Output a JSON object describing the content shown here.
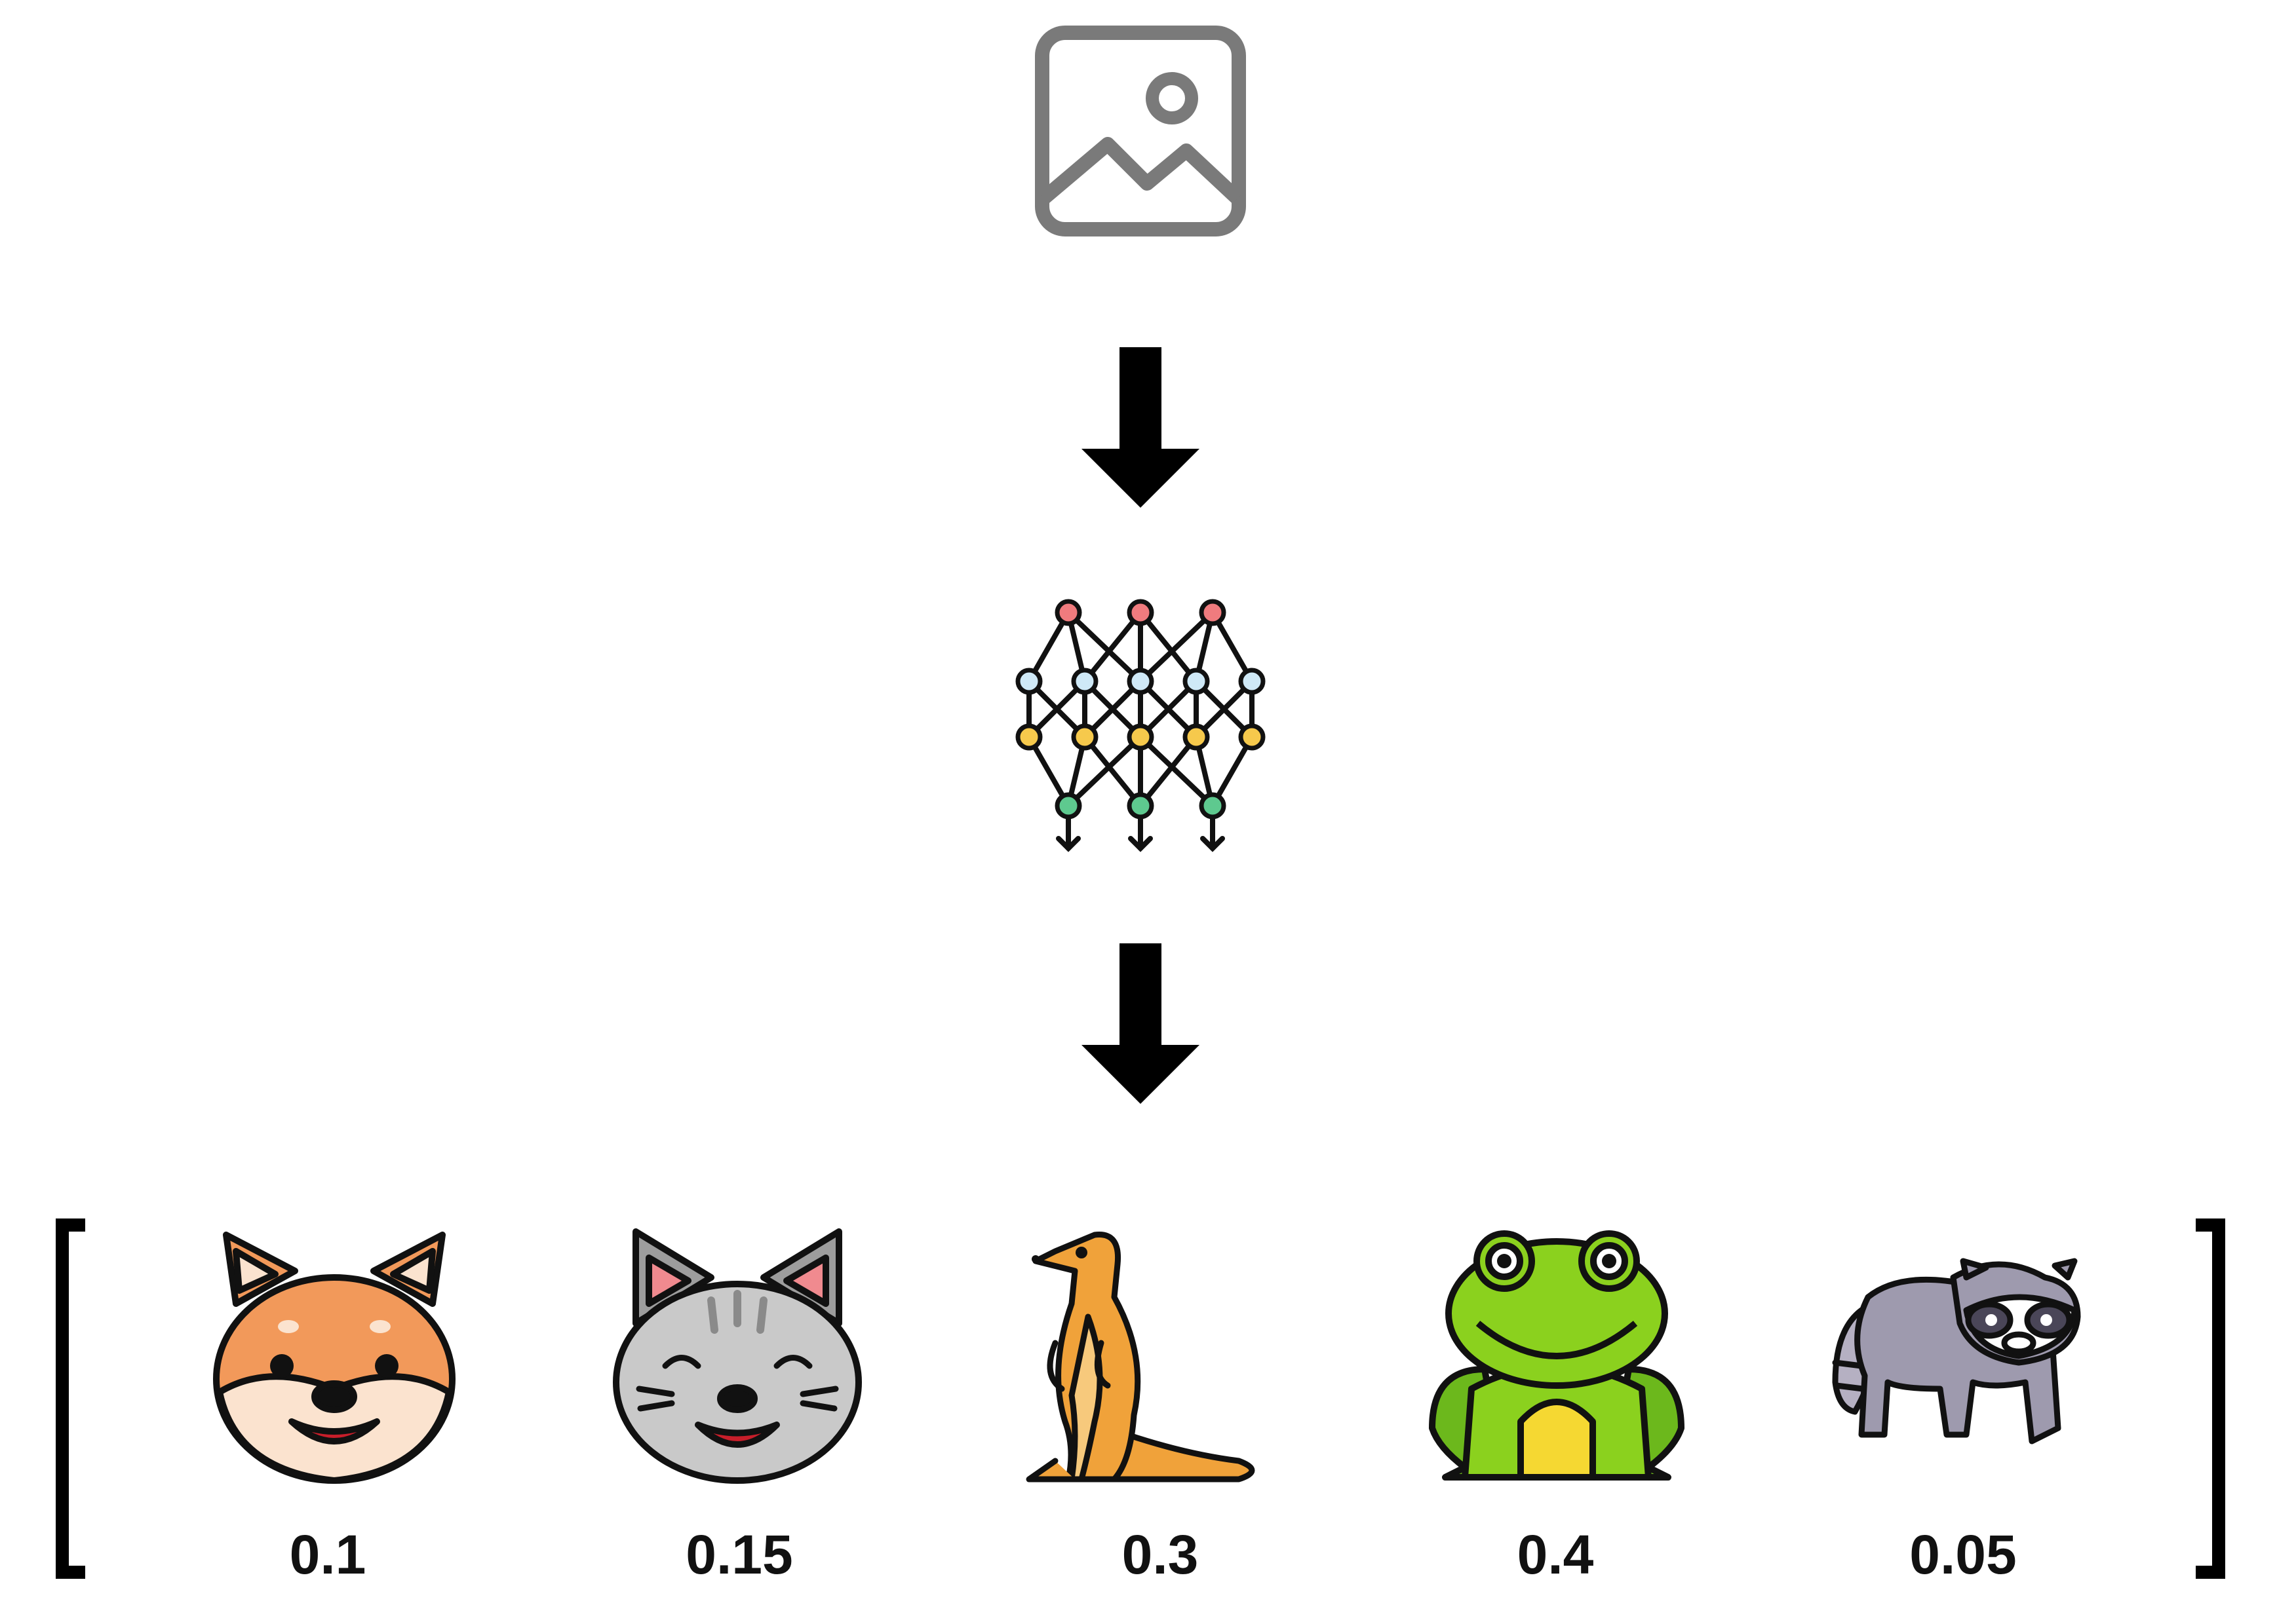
{
  "diagram": {
    "input": {
      "icon": "image-icon",
      "color": "#7a7a7a"
    },
    "model": {
      "icon": "neural-network-icon",
      "node_colors": [
        "#f07b7e",
        "#cfe9f7",
        "#f6c94c",
        "#5ec98f"
      ]
    },
    "arrow_color": "#000000",
    "classes": [
      {
        "icon": "shiba-dog-icon",
        "probability": "0.1"
      },
      {
        "icon": "cat-icon",
        "probability": "0.15"
      },
      {
        "icon": "meerkat-icon",
        "probability": "0.3"
      },
      {
        "icon": "frog-icon",
        "probability": "0.4"
      },
      {
        "icon": "raccoon-icon",
        "probability": "0.05"
      }
    ]
  }
}
